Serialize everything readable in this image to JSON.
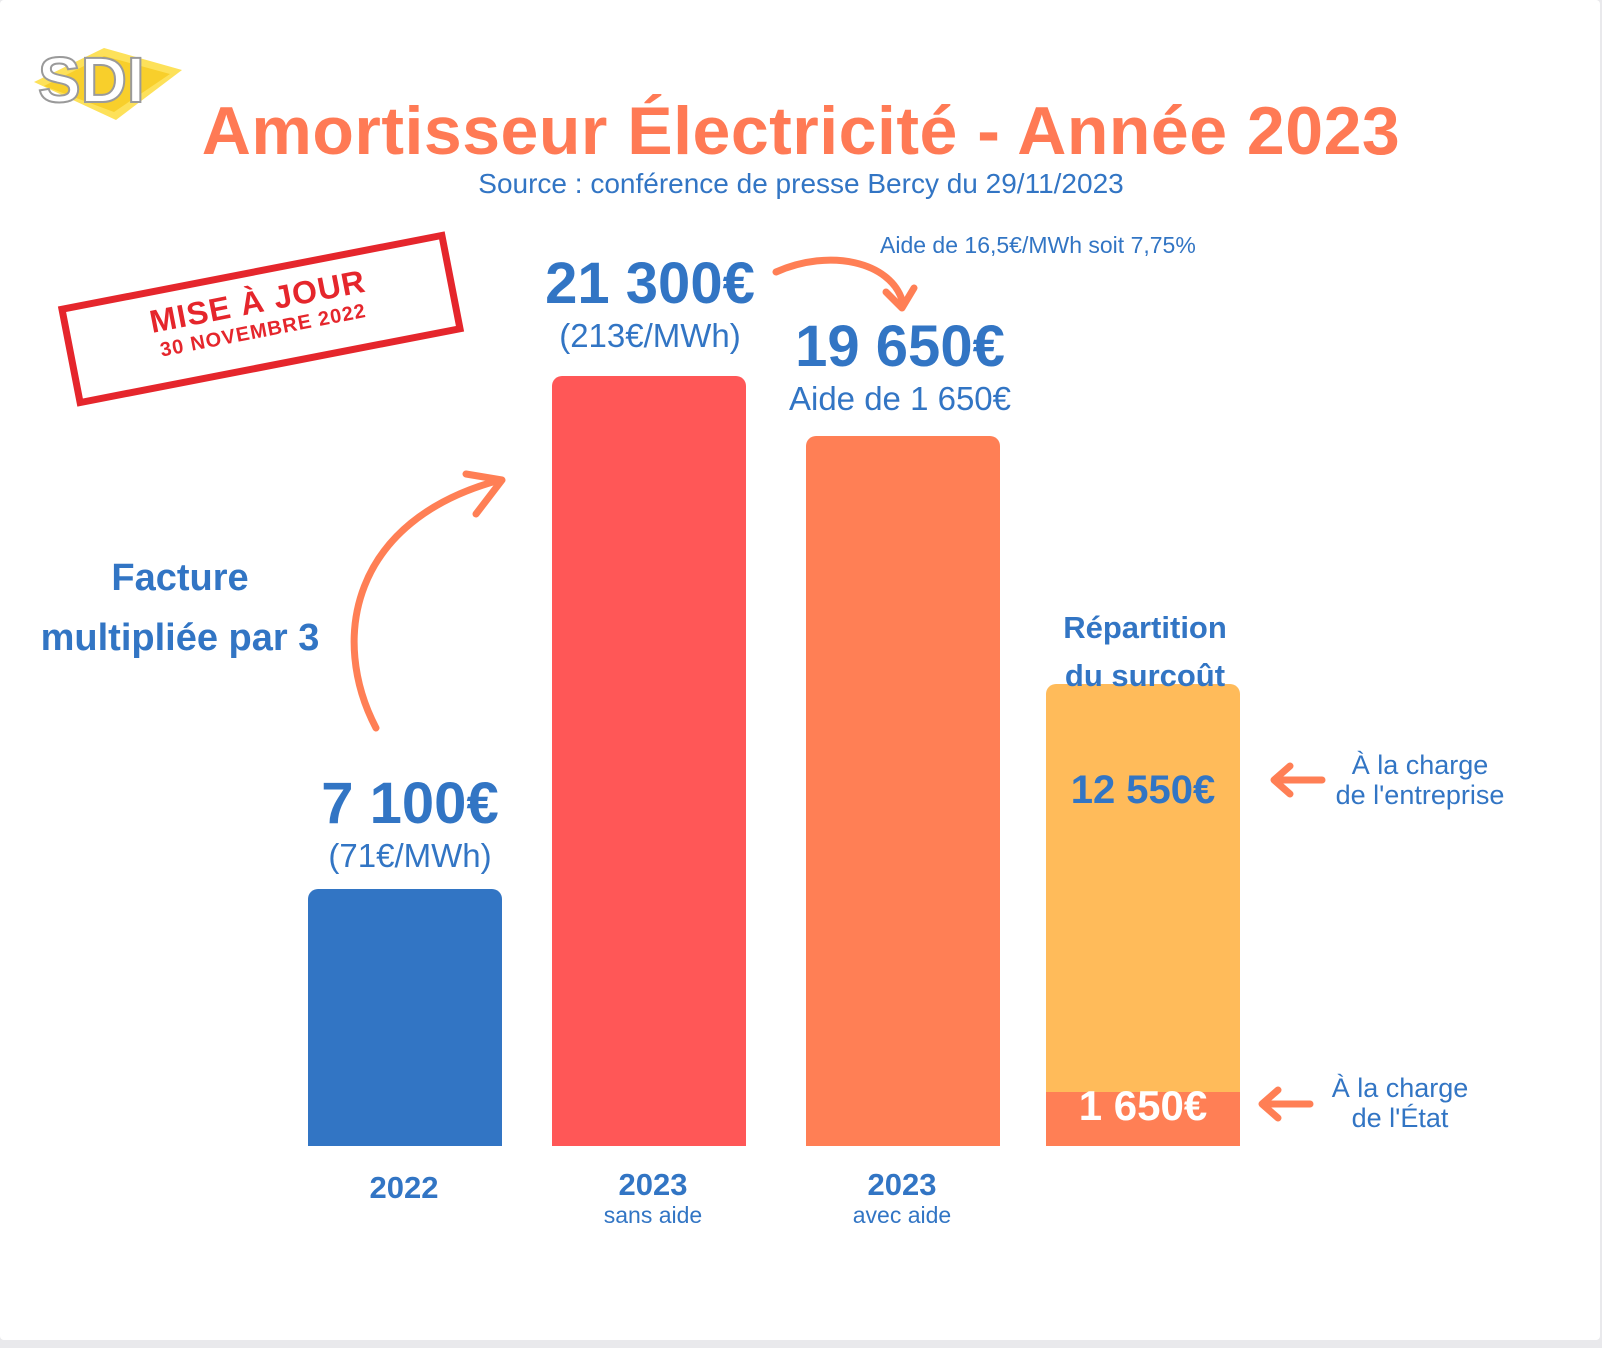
{
  "logo": {
    "text": "SDI"
  },
  "title": "Amortisseur Électricité - Année 2023",
  "subtitle": "Source : conférence de presse Bercy du 29/11/2023",
  "stamp": {
    "line1": "MISE À JOUR",
    "line2": "30 NOVEMBRE 2022"
  },
  "annotations": {
    "multiplier": [
      "Facture",
      "multipliée par 3"
    ],
    "aid_rate": "Aide de 16,5€/MWh soit 7,75%",
    "breakdown_title": [
      "Répartition",
      "du surcoût"
    ],
    "company_share": [
      "À la charge",
      "de l'entreprise"
    ],
    "state_share": [
      "À la charge",
      "de l'État"
    ]
  },
  "colors": {
    "blue": "#3275c4",
    "red": "#ff5757",
    "orange": "#ff7f55",
    "yellow": "#ffbb5a",
    "title": "#ff7a55",
    "stamp": "#e5262c"
  },
  "chart_data": {
    "type": "bar",
    "title": "Amortisseur Électricité - Année 2023",
    "subtitle": "Source : conférence de presse Bercy du 29/11/2023",
    "categories": [
      {
        "label": "2022",
        "sublabel": ""
      },
      {
        "label": "2023",
        "sublabel": "sans aide"
      },
      {
        "label": "2023",
        "sublabel": "avec aide"
      },
      {
        "label": "",
        "sublabel": ""
      }
    ],
    "bars": [
      {
        "value": 7100,
        "label": "7 100€",
        "sublabel": "(71€/MWh)",
        "color": "#3275c4"
      },
      {
        "value": 21300,
        "label": "21 300€",
        "sublabel": "(213€/MWh)",
        "color": "#ff5757"
      },
      {
        "value": 19650,
        "label": "19 650€",
        "sublabel": "Aide de 1 650€",
        "color": "#ff7f55"
      },
      {
        "stacked": true,
        "segments": [
          {
            "value": 1650,
            "label": "1 650€",
            "color": "#ff7f55"
          },
          {
            "value": 12550,
            "label": "12 550€",
            "color": "#ffbb5a"
          }
        ]
      }
    ],
    "ylim": [
      0,
      21300
    ],
    "grid": false,
    "xlabel": "",
    "ylabel": ""
  }
}
